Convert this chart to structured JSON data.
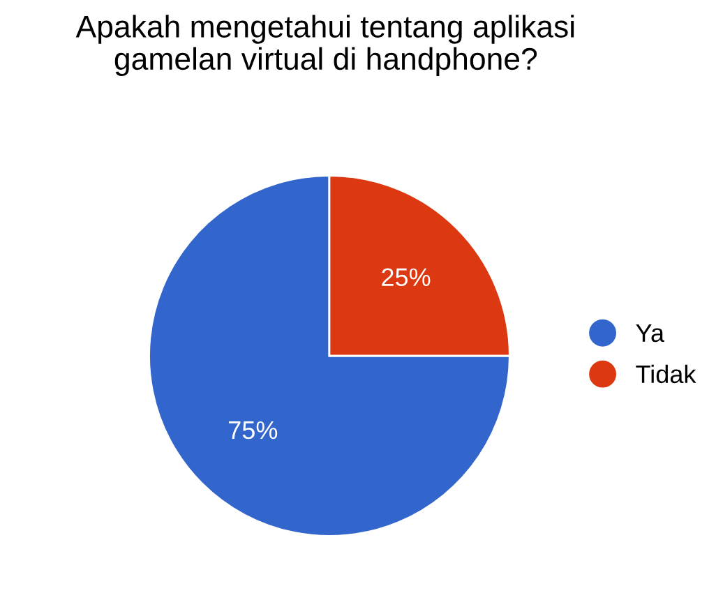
{
  "chart_data": {
    "type": "pie",
    "title": "Apakah mengetahui tentang aplikasi\ngamelan virtual di handphone?",
    "categories": [
      "Ya",
      "Tidak"
    ],
    "values": [
      75,
      25
    ],
    "colors": [
      "#3366cc",
      "#dc3912"
    ],
    "value_labels": [
      "75%",
      "25%"
    ],
    "legend": "right"
  }
}
